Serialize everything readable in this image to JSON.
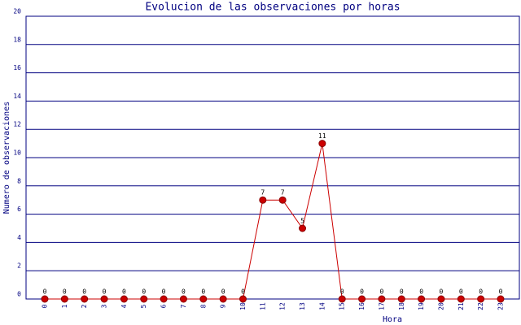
{
  "chart_data": {
    "type": "line",
    "title": "Evolucion de las observaciones por horas",
    "x_label": "Hora",
    "y_label": "Numero de observaciones",
    "categories": [
      "0",
      "1",
      "2",
      "3",
      "4",
      "5",
      "6",
      "7",
      "8",
      "9",
      "10",
      "11",
      "12",
      "13",
      "14",
      "15",
      "16",
      "17",
      "18",
      "19",
      "20",
      "21",
      "22",
      "23"
    ],
    "series": [
      {
        "name": "observaciones",
        "color": "#cc0000",
        "values": [
          0,
          0,
          0,
          0,
          0,
          0,
          0,
          0,
          0,
          0,
          0,
          7,
          7,
          5,
          11,
          0,
          0,
          0,
          0,
          0,
          0,
          0,
          0,
          0
        ]
      }
    ],
    "ylim": [
      0,
      20
    ],
    "yticks": [
      0,
      2,
      4,
      6,
      8,
      10,
      12,
      14,
      16,
      18,
      20
    ],
    "grid": true,
    "show_value_labels": true
  }
}
